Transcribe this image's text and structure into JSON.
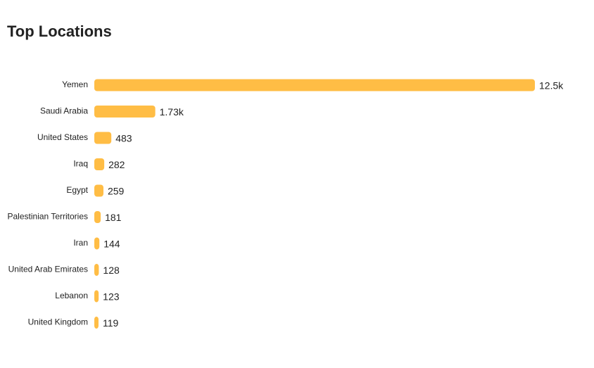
{
  "chart_data": {
    "type": "bar",
    "orientation": "horizontal",
    "title": "Top Locations",
    "categories": [
      "Yemen",
      "Saudi Arabia",
      "United States",
      "Iraq",
      "Egypt",
      "Palestinian Territories",
      "Iran",
      "United Arab Emirates",
      "Lebanon",
      "United Kingdom"
    ],
    "values": [
      12500,
      1730,
      483,
      282,
      259,
      181,
      144,
      128,
      123,
      119
    ],
    "value_labels": [
      "12.5k",
      "1.73k",
      "483",
      "282",
      "259",
      "181",
      "144",
      "128",
      "123",
      "119"
    ],
    "color": "#ffbd45"
  }
}
